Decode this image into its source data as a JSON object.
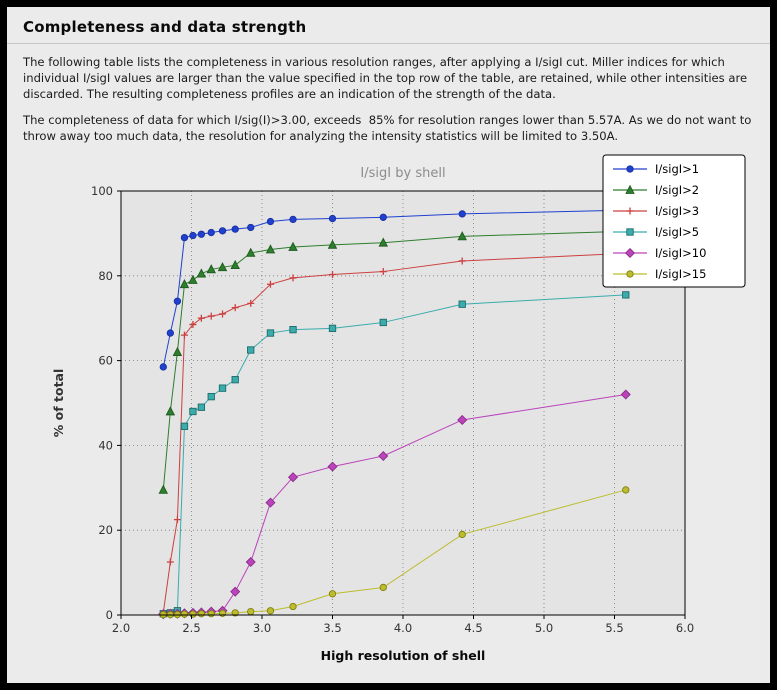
{
  "header": {
    "title": "Completeness and data strength"
  },
  "paragraphs": [
    "The following table lists the completeness in various resolution ranges, after applying a I/sigI cut. Miller indices for which individual I/sigI values are larger than the value specified in the top row of the table, are retained, while other intensities are discarded. The resulting completeness profiles are an indication of the strength of the data.",
    "The completeness of data for which I/sig(I)>3.00, exceeds  85% for resolution ranges lower than 5.57A. As we do not want to throw away too much data, the resolution for analyzing the intensity statistics will be limited to 3.50A."
  ],
  "chart_data": {
    "type": "line",
    "title": "I/sigI by shell",
    "xlabel": "High resolution of shell",
    "ylabel": "% of total",
    "xlim": [
      2.0,
      6.0
    ],
    "ylim": [
      0,
      100
    ],
    "grid": true,
    "legend_position": "top-right",
    "xticks": [
      2.0,
      2.5,
      3.0,
      3.5,
      4.0,
      4.5,
      5.0,
      5.5,
      6.0
    ],
    "xtick_labels": [
      "2.0",
      "2.5",
      "3.0",
      "3.5",
      "4.0",
      "4.5",
      "5.0",
      "5.5",
      "6.0"
    ],
    "yticks": [
      0,
      20,
      40,
      60,
      80,
      100
    ],
    "ytick_labels": [
      "0",
      "20",
      "40",
      "60",
      "80",
      "100"
    ],
    "colors": {
      "plot_bg": "#e4e4e4",
      "grid": "#777777",
      "title": "#8c8c8c",
      "spine": "#000000",
      "legend_bg": "#ffffff"
    },
    "x": [
      2.3,
      2.35,
      2.4,
      2.45,
      2.51,
      2.57,
      2.64,
      2.72,
      2.81,
      2.92,
      3.06,
      3.22,
      3.5,
      3.86,
      4.42,
      5.58
    ],
    "series": [
      {
        "name": "I/sigI>1",
        "color": "#2040cf",
        "edge": "#17309d",
        "marker": "circle",
        "values": [
          58.5,
          66.5,
          74.0,
          89.0,
          89.5,
          89.8,
          90.2,
          90.6,
          91.0,
          91.4,
          92.8,
          93.3,
          93.5,
          93.8,
          94.6,
          95.5
        ]
      },
      {
        "name": "I/sigI>2",
        "color": "#2d7e2d",
        "edge": "#1f5a1f",
        "marker": "triangle",
        "values": [
          29.5,
          48.0,
          62.0,
          78.0,
          79.0,
          80.5,
          81.5,
          82.0,
          82.5,
          85.4,
          86.2,
          86.8,
          87.3,
          87.8,
          89.3,
          90.5
        ]
      },
      {
        "name": "I/sigI>3",
        "color": "#cc4040",
        "edge": "#cc4040",
        "marker": "plus",
        "values": [
          0.5,
          12.5,
          22.5,
          66.0,
          68.5,
          70.0,
          70.5,
          71.0,
          72.5,
          73.5,
          78.0,
          79.5,
          80.3,
          81.0,
          83.5,
          85.3
        ]
      },
      {
        "name": "I/sigI>5",
        "color": "#3aacac",
        "edge": "#1f6b6b",
        "marker": "square",
        "values": [
          0.3,
          0.5,
          1.0,
          44.5,
          48.0,
          49.0,
          51.5,
          53.5,
          55.5,
          62.5,
          66.5,
          67.3,
          67.6,
          69.0,
          73.3,
          75.5
        ]
      },
      {
        "name": "I/sigI>10",
        "color": "#bb44bb",
        "edge": "#8a2d8a",
        "marker": "diamond",
        "values": [
          0.2,
          0.3,
          0.3,
          0.4,
          0.5,
          0.6,
          0.8,
          1.0,
          5.5,
          12.5,
          26.5,
          32.5,
          35.0,
          37.5,
          46.0,
          52.0
        ]
      },
      {
        "name": "I/sigI>15",
        "color": "#bcbc2e",
        "edge": "#80800f",
        "marker": "circle",
        "values": [
          0.1,
          0.1,
          0.1,
          0.2,
          0.2,
          0.3,
          0.3,
          0.4,
          0.5,
          0.8,
          1.0,
          2.0,
          5.0,
          6.5,
          19.0,
          29.5
        ]
      }
    ]
  }
}
